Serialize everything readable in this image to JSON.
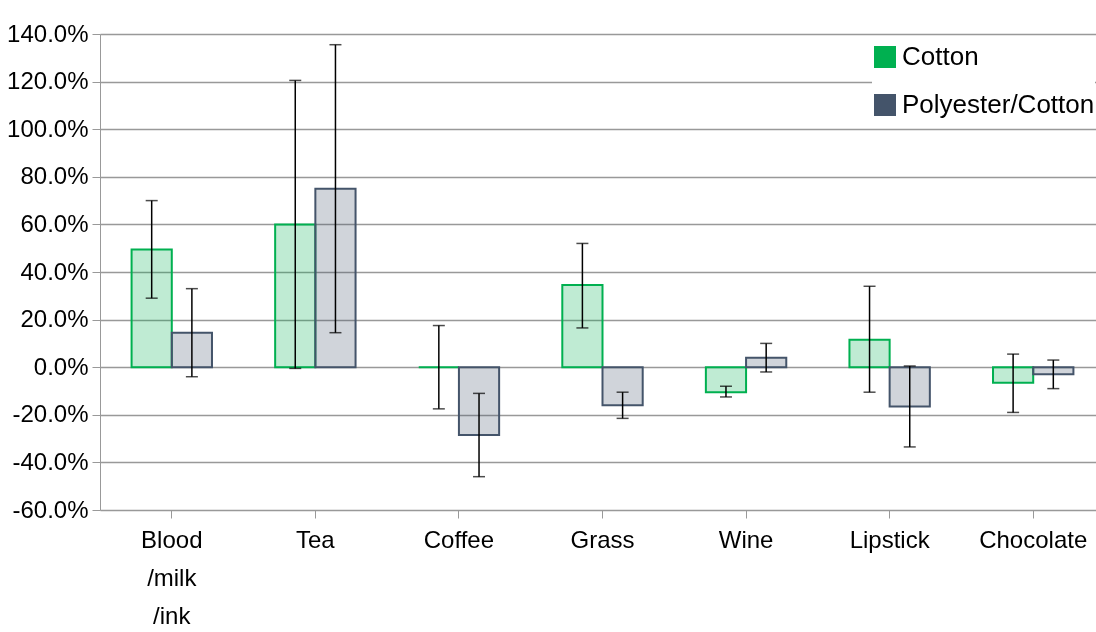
{
  "chart_data": {
    "type": "bar",
    "categories": [
      "Blood/milk/ink",
      "Tea",
      "Coffee",
      "Grass",
      "Wine",
      "Lipstick",
      "Chocolate"
    ],
    "series": [
      {
        "name": "Cotton",
        "color": "#00b050",
        "values": [
          49.5,
          60,
          0,
          34.5,
          -10.5,
          11.5,
          -6.5
        ],
        "errors": [
          [
            29,
            70
          ],
          [
            -0.5,
            120.5
          ],
          [
            -17.5,
            17.5
          ],
          [
            16.5,
            52
          ],
          [
            -12.5,
            -8
          ],
          [
            -10.5,
            34
          ],
          [
            -19,
            5.5
          ]
        ]
      },
      {
        "name": "Polyester/Cotton",
        "color": "#44546a",
        "values": [
          14.5,
          75,
          -28.5,
          -16,
          4,
          -16.5,
          -3
        ],
        "errors": [
          [
            -4,
            33
          ],
          [
            14.5,
            135.5
          ],
          [
            -46,
            -11
          ],
          [
            -21.5,
            -10.5
          ],
          [
            -2,
            10
          ],
          [
            -33.5,
            0.5
          ],
          [
            -9,
            3
          ]
        ]
      }
    ],
    "ylim": [
      -60,
      140
    ],
    "yticks": [
      {
        "value": -60,
        "label": "-60.0%"
      },
      {
        "value": -40,
        "label": "-40.0%"
      },
      {
        "value": -20,
        "label": "-20.0%"
      },
      {
        "value": 0,
        "label": "0.0%"
      },
      {
        "value": 20,
        "label": "20.0%"
      },
      {
        "value": 40,
        "label": "40.0%"
      },
      {
        "value": 60,
        "label": "60.0%"
      },
      {
        "value": 80,
        "label": "80.0%"
      },
      {
        "value": 100,
        "label": "100.0%"
      },
      {
        "value": 120,
        "label": "120.0%"
      },
      {
        "value": 140,
        "label": "140.0%"
      }
    ],
    "grid": "y",
    "legend": "top right"
  }
}
